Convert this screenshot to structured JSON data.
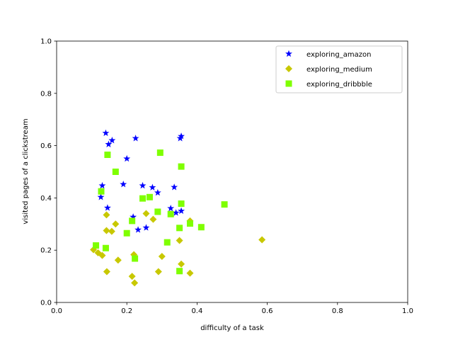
{
  "chart_data": {
    "type": "scatter",
    "title": "",
    "xlabel": "difficulty of a task",
    "ylabel": "visited pages of a clickstream",
    "xlim": [
      0,
      1
    ],
    "ylim": [
      0,
      1
    ],
    "xticks": [
      "0.0",
      "0.2",
      "0.4",
      "0.6",
      "0.8",
      "1.0"
    ],
    "yticks": [
      "0.0",
      "0.2",
      "0.4",
      "0.6",
      "0.8",
      "1.0"
    ],
    "grid": false,
    "legend_position": "top-right",
    "series": [
      {
        "name": "exploring_amazon",
        "marker": "star",
        "color": "#0000ff",
        "x": [
          0.14,
          0.158,
          0.148,
          0.225,
          0.355,
          0.352,
          0.2,
          0.13,
          0.19,
          0.245,
          0.273,
          0.335,
          0.288,
          0.126,
          0.145,
          0.218,
          0.232,
          0.255,
          0.325,
          0.34,
          0.355
        ],
        "y": [
          0.648,
          0.62,
          0.605,
          0.628,
          0.636,
          0.628,
          0.55,
          0.447,
          0.452,
          0.447,
          0.44,
          0.441,
          0.42,
          0.403,
          0.362,
          0.327,
          0.278,
          0.286,
          0.36,
          0.343,
          0.35
        ]
      },
      {
        "name": "exploring_medium",
        "marker": "diamond",
        "color": "#c8c800",
        "x": [
          0.142,
          0.168,
          0.142,
          0.157,
          0.105,
          0.118,
          0.13,
          0.175,
          0.143,
          0.255,
          0.275,
          0.38,
          0.35,
          0.22,
          0.3,
          0.222,
          0.215,
          0.29,
          0.355,
          0.38,
          0.585
        ],
        "y": [
          0.335,
          0.3,
          0.275,
          0.272,
          0.202,
          0.19,
          0.18,
          0.162,
          0.118,
          0.34,
          0.318,
          0.312,
          0.237,
          0.183,
          0.176,
          0.075,
          0.1,
          0.118,
          0.147,
          0.112,
          0.24
        ]
      },
      {
        "name": "exploring_dribbble",
        "marker": "square",
        "color": "#7fff00",
        "x": [
          0.145,
          0.168,
          0.295,
          0.355,
          0.127,
          0.245,
          0.265,
          0.288,
          0.355,
          0.325,
          0.478,
          0.38,
          0.412,
          0.35,
          0.215,
          0.2,
          0.315,
          0.112,
          0.14,
          0.223,
          0.35
        ],
        "y": [
          0.565,
          0.5,
          0.573,
          0.52,
          0.425,
          0.398,
          0.403,
          0.347,
          0.378,
          0.338,
          0.375,
          0.302,
          0.288,
          0.285,
          0.312,
          0.265,
          0.23,
          0.218,
          0.208,
          0.168,
          0.12
        ]
      }
    ]
  }
}
